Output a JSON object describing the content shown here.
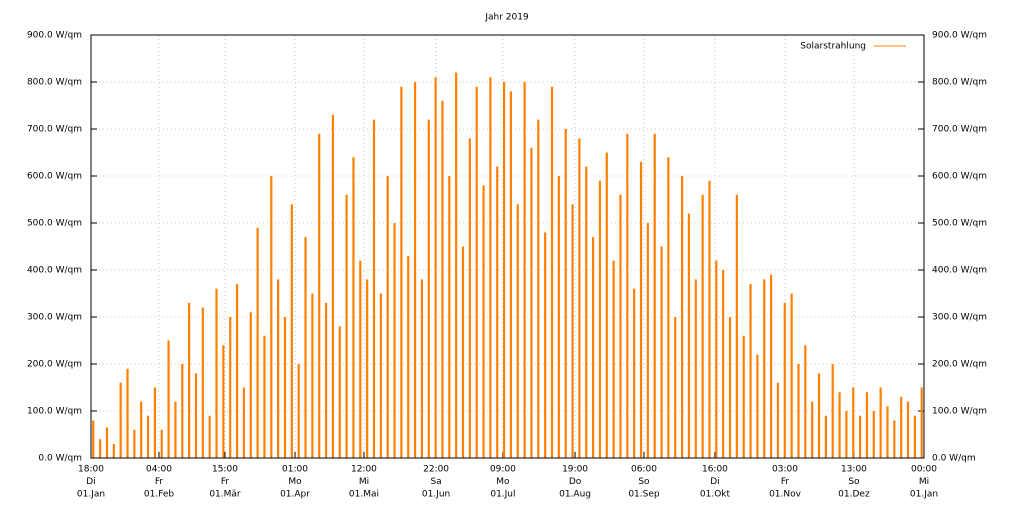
{
  "chart_data": {
    "type": "impulse",
    "title": "Jahr 2019",
    "series": [
      {
        "name": "Solarstrahlung",
        "color": "#ff8000",
        "x": [
          1,
          4,
          7,
          10,
          13,
          16,
          19,
          22,
          25,
          28,
          31,
          34,
          37,
          40,
          43,
          46,
          49,
          52,
          55,
          58,
          61,
          64,
          67,
          70,
          73,
          76,
          79,
          82,
          85,
          88,
          91,
          94,
          97,
          100,
          103,
          106,
          109,
          112,
          115,
          118,
          121,
          124,
          127,
          130,
          133,
          136,
          139,
          142,
          145,
          148,
          151,
          154,
          157,
          160,
          163,
          166,
          169,
          172,
          175,
          178,
          181,
          184,
          187,
          190,
          193,
          196,
          199,
          202,
          205,
          208,
          211,
          214,
          217,
          220,
          223,
          226,
          229,
          232,
          235,
          238,
          241,
          244,
          247,
          250,
          253,
          256,
          259,
          262,
          265,
          268,
          271,
          274,
          277,
          280,
          283,
          286,
          289,
          292,
          295,
          298,
          301,
          304,
          307,
          310,
          313,
          316,
          319,
          322,
          325,
          328,
          331,
          334,
          337,
          340,
          343,
          346,
          349,
          352,
          355,
          358,
          361,
          364
        ],
        "values": [
          80,
          40,
          65,
          30,
          160,
          190,
          60,
          120,
          90,
          150,
          60,
          250,
          120,
          200,
          330,
          180,
          320,
          90,
          360,
          240,
          300,
          370,
          150,
          310,
          490,
          260,
          600,
          380,
          300,
          540,
          200,
          470,
          350,
          690,
          330,
          730,
          280,
          560,
          640,
          420,
          380,
          720,
          350,
          600,
          500,
          790,
          430,
          800,
          380,
          720,
          810,
          760,
          600,
          820,
          450,
          680,
          790,
          580,
          810,
          620,
          800,
          780,
          540,
          800,
          660,
          720,
          480,
          790,
          600,
          700,
          540,
          680,
          620,
          470,
          590,
          650,
          420,
          560,
          690,
          360,
          630,
          500,
          690,
          450,
          640,
          300,
          600,
          520,
          380,
          560,
          590,
          420,
          400,
          300,
          560,
          260,
          370,
          220,
          380,
          390,
          160,
          330,
          350,
          200,
          240,
          120,
          180,
          90,
          200,
          140,
          100,
          150,
          90,
          140,
          100,
          150,
          110,
          80,
          130,
          120,
          90,
          150
        ]
      }
    ],
    "xlim": [
      0,
      365
    ],
    "xticks": [
      0,
      29.8,
      58.7,
      89.4,
      119.6,
      151.2,
      180.5,
      212.1,
      242.3,
      273.4,
      304.1,
      334.3,
      365
    ],
    "xtick_labels": [
      [
        "18:00",
        "Di",
        "01.Jan"
      ],
      [
        "04:00",
        "Fr",
        "01.Feb"
      ],
      [
        "15:00",
        "Fr",
        "01.Mär"
      ],
      [
        "01:00",
        "Mo",
        "01.Apr"
      ],
      [
        "12:00",
        "Mi",
        "01.Mai"
      ],
      [
        "22:00",
        "Sa",
        "01.Jun"
      ],
      [
        "09:00",
        "Mo",
        "01.Jul"
      ],
      [
        "19:00",
        "Do",
        "01.Aug"
      ],
      [
        "06:00",
        "So",
        "01.Sep"
      ],
      [
        "16:00",
        "Di",
        "01.Okt"
      ],
      [
        "03:00",
        "Fr",
        "01.Nov"
      ],
      [
        "13:00",
        "So",
        "01.Dez"
      ],
      [
        "00:00",
        "Mi",
        "01.Jan"
      ]
    ],
    "ylim": [
      0,
      900
    ],
    "yticks": [
      {
        "value": 0,
        "label": "0.0 W/qm"
      },
      {
        "value": 100,
        "label": "100.0 W/qm"
      },
      {
        "value": 200,
        "label": "200.0 W/qm"
      },
      {
        "value": 300,
        "label": "300.0 W/qm"
      },
      {
        "value": 400,
        "label": "400.0 W/qm"
      },
      {
        "value": 500,
        "label": "500.0 W/qm"
      },
      {
        "value": 600,
        "label": "600.0 W/qm"
      },
      {
        "value": 700,
        "label": "700.0 W/qm"
      },
      {
        "value": 800,
        "label": "800.0 W/qm"
      },
      {
        "value": 900,
        "label": "900.0 W/qm"
      }
    ],
    "y2lim": [
      0,
      900
    ],
    "y2ticks": [
      {
        "value": 0,
        "label": "0.0 W/qm"
      },
      {
        "value": 100,
        "label": "100.0 W/qm"
      },
      {
        "value": 200,
        "label": "200.0 W/qm"
      },
      {
        "value": 300,
        "label": "300.0 W/qm"
      },
      {
        "value": 400,
        "label": "400.0 W/qm"
      },
      {
        "value": 500,
        "label": "500.0 W/qm"
      },
      {
        "value": 600,
        "label": "600.0 W/qm"
      },
      {
        "value": 700,
        "label": "700.0 W/qm"
      },
      {
        "value": 800,
        "label": "800.0 W/qm"
      },
      {
        "value": 900,
        "label": "900.0 W/qm"
      }
    ],
    "grid": true,
    "legend": "top-right"
  }
}
